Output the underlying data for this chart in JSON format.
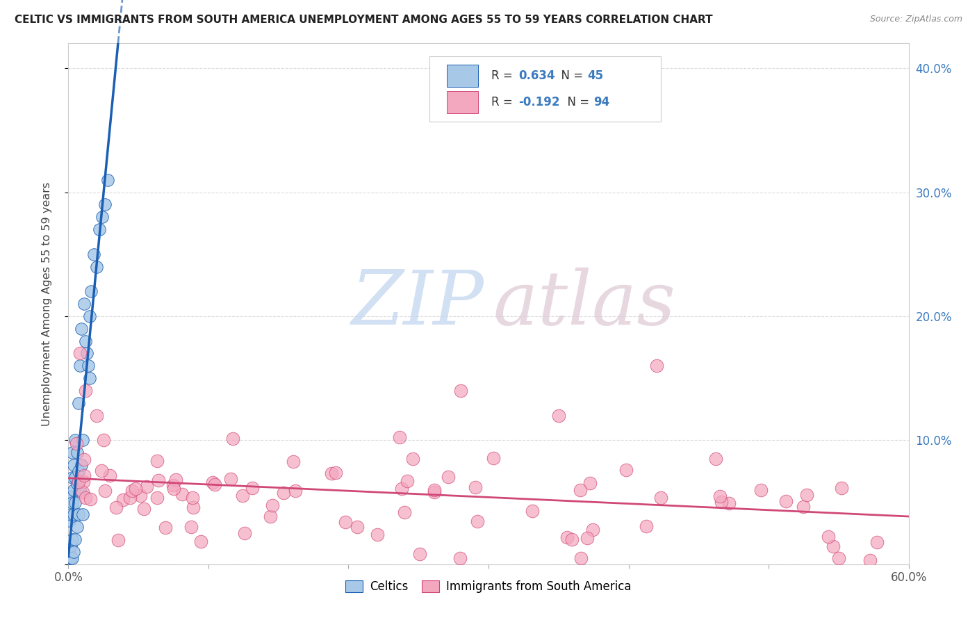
{
  "title": "CELTIC VS IMMIGRANTS FROM SOUTH AMERICA UNEMPLOYMENT AMONG AGES 55 TO 59 YEARS CORRELATION CHART",
  "source": "Source: ZipAtlas.com",
  "ylabel": "Unemployment Among Ages 55 to 59 years",
  "xlim": [
    0,
    0.6
  ],
  "ylim": [
    0,
    0.42
  ],
  "celtics_R": 0.634,
  "celtics_N": 45,
  "immigrants_R": -0.192,
  "immigrants_N": 94,
  "dot_color_celtics": "#a8c8e8",
  "dot_color_immigrants": "#f4a8c0",
  "line_color_celtics": "#1a5fb4",
  "line_color_immigrants": "#d04878",
  "bg_color": "#ffffff",
  "grid_color": "#cccccc",
  "right_tick_color": "#3a7abf",
  "title_color": "#222222",
  "source_color": "#888888",
  "watermark_zip_color": "#c0d4ef",
  "watermark_atlas_color": "#ddc8d4"
}
